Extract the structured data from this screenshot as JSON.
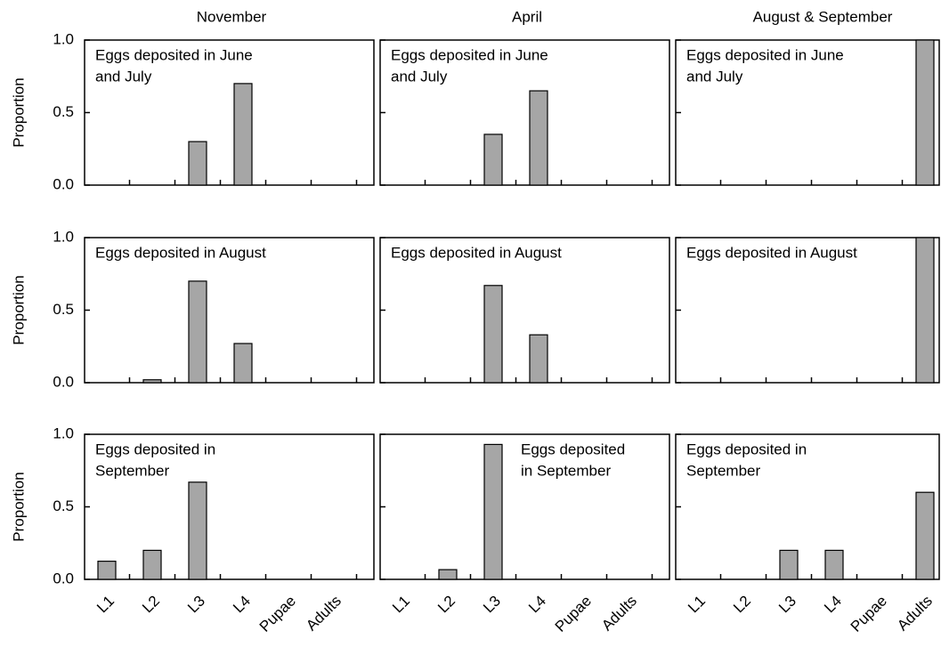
{
  "chart_data": [
    {
      "type": "bar",
      "title": "November",
      "ylabel": "Proportion",
      "annotation": [
        "Eggs deposited in June",
        "and July"
      ],
      "values": [
        0,
        0,
        0.3,
        0.7,
        0,
        0
      ],
      "ylim": [
        0,
        1
      ],
      "yticks": [
        {
          "value": 0,
          "label": "0.0"
        },
        {
          "value": 0.5,
          "label": "0.5"
        },
        {
          "value": 1,
          "label": "1.0"
        }
      ],
      "color": "#a6a6a6"
    },
    {
      "type": "bar",
      "title": "April",
      "annotation": [
        "Eggs deposited in June",
        "and July"
      ],
      "values": [
        0,
        0,
        0.35,
        0.65,
        0,
        0
      ],
      "ylim": [
        0,
        1
      ],
      "color": "#a6a6a6"
    },
    {
      "type": "bar",
      "title": "August & September",
      "annotation": [
        "Eggs deposited in June",
        "and July"
      ],
      "values": [
        0,
        0,
        0,
        0,
        0,
        1
      ],
      "ylim": [
        0,
        1
      ],
      "color": "#a6a6a6"
    },
    {
      "type": "bar",
      "ylabel": "Proportion",
      "annotation": [
        "Eggs deposited in August"
      ],
      "values": [
        0,
        0.02,
        0.7,
        0.27,
        0,
        0
      ],
      "ylim": [
        0,
        1
      ],
      "yticks": [
        {
          "value": 0,
          "label": "0.0"
        },
        {
          "value": 0.5,
          "label": "0.5"
        },
        {
          "value": 1,
          "label": "1.0"
        }
      ],
      "color": "#a6a6a6"
    },
    {
      "type": "bar",
      "annotation": [
        "Eggs deposited in August"
      ],
      "values": [
        0,
        0,
        0.67,
        0.33,
        0,
        0
      ],
      "ylim": [
        0,
        1
      ],
      "color": "#a6a6a6"
    },
    {
      "type": "bar",
      "annotation": [
        "Eggs deposited in August"
      ],
      "values": [
        0,
        0,
        0,
        0,
        0,
        1
      ],
      "ylim": [
        0,
        1
      ],
      "color": "#a6a6a6"
    },
    {
      "type": "bar",
      "ylabel": "Proportion",
      "annotation": [
        "Eggs deposited in",
        "September"
      ],
      "categories": [
        "L1",
        "L2",
        "L3",
        "L4",
        "Pupae",
        "Adults"
      ],
      "values": [
        0.125,
        0.2,
        0.67,
        0,
        0,
        0
      ],
      "ylim": [
        0,
        1
      ],
      "yticks": [
        {
          "value": 0,
          "label": "0.0"
        },
        {
          "value": 0.5,
          "label": "0.5"
        },
        {
          "value": 1,
          "label": "1.0"
        }
      ],
      "color": "#a6a6a6"
    },
    {
      "type": "bar",
      "annotation": [
        "Eggs deposited",
        "in September"
      ],
      "categories": [
        "L1",
        "L2",
        "L3",
        "L4",
        "Pupae",
        "Adults"
      ],
      "values": [
        0,
        0.067,
        0.93,
        0,
        0,
        0
      ],
      "ylim": [
        0,
        1
      ],
      "color": "#a6a6a6"
    },
    {
      "type": "bar",
      "annotation": [
        "Eggs deposited in",
        "September"
      ],
      "categories": [
        "L1",
        "L2",
        "L3",
        "L4",
        "Pupae",
        "Adults"
      ],
      "values": [
        0,
        0,
        0.2,
        0.2,
        0,
        0.6
      ],
      "ylim": [
        0,
        1
      ],
      "color": "#a6a6a6"
    }
  ]
}
